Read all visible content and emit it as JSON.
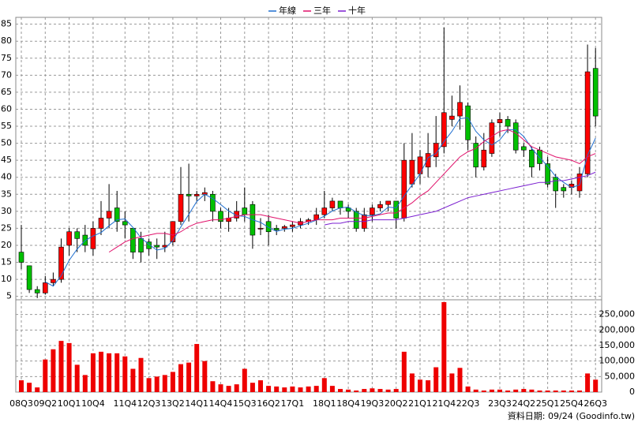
{
  "chart_data": {
    "type": "candlestick",
    "categories": [
      "08Q3",
      null,
      null,
      "09Q2",
      null,
      null,
      "10Q1",
      null,
      null,
      "10Q4",
      null,
      null,
      null,
      "11Q4",
      null,
      null,
      "12Q3",
      null,
      null,
      "13Q2",
      null,
      null,
      "14Q1",
      null,
      null,
      "14Q4",
      null,
      null,
      "15Q3",
      null,
      null,
      "16Q2",
      null,
      null,
      "17Q1",
      null,
      null,
      null,
      "18Q1",
      null,
      null,
      "18Q4",
      null,
      null,
      "19Q3",
      null,
      null,
      "20Q2",
      null,
      null,
      "21Q1",
      null,
      null,
      "21Q4",
      null,
      null,
      "22Q3",
      null,
      null,
      null,
      "23Q3",
      null,
      null,
      "24Q2",
      null,
      null,
      "25Q1",
      null,
      null,
      "25Q4",
      null,
      null,
      "26Q3"
    ],
    "open": [
      18,
      14,
      7,
      6,
      9,
      10,
      20,
      24,
      23,
      19,
      25,
      28,
      31,
      27,
      25,
      22,
      21,
      20,
      19.5,
      21,
      27,
      35,
      34.5,
      35,
      35,
      30,
      27,
      28,
      31,
      32,
      25,
      27,
      25,
      25,
      25.5,
      26,
      27,
      27.5,
      29,
      31,
      33,
      31,
      30,
      25,
      29,
      31,
      32,
      33,
      28,
      38,
      41,
      43,
      46,
      49,
      57,
      58,
      61,
      50,
      43,
      47,
      56,
      57,
      56,
      49,
      48,
      48,
      44,
      40,
      37,
      37,
      36,
      41,
      72
    ],
    "high": [
      26,
      14,
      8,
      11,
      12,
      22,
      25,
      25,
      26,
      27,
      33,
      38,
      36,
      30,
      25,
      24,
      22,
      22,
      24,
      27,
      43,
      44,
      36,
      37,
      36,
      31,
      31,
      33,
      37,
      33,
      28,
      29,
      26,
      26,
      27,
      28,
      28,
      31,
      36,
      34,
      33,
      32,
      31,
      31,
      32,
      33,
      33,
      33,
      50,
      53,
      48,
      53,
      58,
      84,
      64,
      67,
      62,
      52,
      53,
      57,
      59,
      58,
      57,
      50,
      49,
      49,
      46,
      41,
      38,
      39,
      43,
      79,
      78
    ],
    "low": [
      13,
      6,
      4.5,
      5.5,
      8,
      9,
      17,
      18,
      18,
      17,
      23,
      25,
      24,
      22,
      16,
      15,
      17,
      16,
      18,
      20,
      26,
      27,
      33,
      33,
      27,
      25,
      24,
      27,
      27,
      19,
      23,
      20,
      23,
      24,
      24,
      25,
      26,
      26,
      28,
      30,
      29,
      28,
      24,
      24,
      27,
      30,
      30,
      25,
      27,
      37,
      38,
      40,
      43,
      47,
      55,
      54,
      48,
      40,
      42,
      46,
      52,
      53,
      47,
      46,
      40,
      42,
      37,
      31,
      34,
      35,
      34,
      40,
      55
    ],
    "close": [
      15,
      7,
      6,
      9,
      10,
      19.5,
      24,
      22,
      20,
      25,
      28,
      30,
      27,
      26,
      18,
      18,
      19,
      19.5,
      20,
      27,
      35,
      34.5,
      35,
      35.5,
      30,
      27,
      28,
      30,
      29,
      23,
      25,
      24,
      24.5,
      25.5,
      26,
      27,
      27.5,
      29,
      31,
      33,
      31,
      30,
      25,
      29,
      31,
      32,
      33,
      28,
      45,
      45,
      46,
      47,
      50,
      59,
      58,
      62,
      51,
      43,
      48,
      56,
      57,
      55,
      48,
      48,
      43,
      44,
      38,
      36,
      36,
      38,
      41,
      71,
      58
    ],
    "up_color": "#ff0000",
    "down_color": "#00c000",
    "volume": {
      "axis": "y2",
      "color": "#ee0000",
      "values": [
        38000,
        30000,
        15000,
        105000,
        138000,
        165000,
        158000,
        88000,
        55000,
        125000,
        130000,
        125000,
        125000,
        115000,
        75000,
        110000,
        45000,
        50000,
        55000,
        65000,
        90000,
        95000,
        155000,
        100000,
        35000,
        25000,
        20000,
        25000,
        75000,
        30000,
        38000,
        20000,
        18000,
        15000,
        18000,
        15000,
        18000,
        20000,
        45000,
        20000,
        10000,
        8000,
        5000,
        10000,
        12000,
        10000,
        8000,
        10000,
        130000,
        60000,
        40000,
        38000,
        80000,
        290000,
        60000,
        78000,
        18000,
        8000,
        5000,
        8000,
        8000,
        5000,
        8000,
        10000,
        8000,
        5000,
        5000,
        5000,
        5000,
        5000,
        5000,
        60000,
        40000
      ]
    },
    "series": [
      {
        "name": "年線",
        "color": "#1f6fd0",
        "values": [
          null,
          null,
          null,
          9.25,
          8,
          11.1,
          15.6,
          18.9,
          21.4,
          22.75,
          23.75,
          25.75,
          27.5,
          27.75,
          25.25,
          22.25,
          20.25,
          18.6,
          19.1,
          21.4,
          25.4,
          29.1,
          32.9,
          35,
          33.75,
          32,
          30.1,
          28.75,
          28.5,
          27.5,
          26.75,
          25.25,
          24.1,
          24.75,
          25,
          25.75,
          26.5,
          27.4,
          28.6,
          30.1,
          31,
          31.25,
          29.75,
          28.75,
          28.75,
          29.25,
          31.25,
          31,
          34.5,
          37.75,
          41,
          45.75,
          47,
          50.5,
          53.5,
          57.25,
          57.5,
          53.5,
          51,
          49.5,
          51,
          54,
          54,
          52,
          48.5,
          45.75,
          43.25,
          40.25,
          38.5,
          37,
          37.75,
          46.5,
          51.5
        ]
      },
      {
        "name": "三年",
        "color": "#e0106a",
        "values": [
          null,
          null,
          null,
          null,
          null,
          null,
          null,
          null,
          null,
          null,
          null,
          18,
          19.5,
          21,
          22,
          22.5,
          23,
          23.5,
          23.5,
          23,
          24,
          25.5,
          26.5,
          27,
          27.5,
          27.5,
          28,
          28.5,
          29,
          29,
          29,
          28.5,
          28,
          27.5,
          27,
          26.5,
          27,
          27.5,
          27.5,
          27.5,
          28,
          28,
          28,
          28,
          28.5,
          29,
          29.5,
          29.5,
          31,
          32.5,
          34.5,
          36,
          38.5,
          41,
          43.5,
          46,
          47.5,
          48.5,
          50.5,
          52,
          53.5,
          54,
          53,
          51,
          49,
          48,
          47,
          46,
          45.5,
          45,
          44,
          46,
          47
        ]
      },
      {
        "name": "十年",
        "color": "#7b1fd0",
        "values": [
          null,
          null,
          null,
          null,
          null,
          null,
          null,
          null,
          null,
          null,
          null,
          null,
          null,
          null,
          null,
          null,
          null,
          null,
          null,
          null,
          null,
          null,
          null,
          null,
          null,
          null,
          null,
          null,
          null,
          null,
          null,
          null,
          null,
          null,
          null,
          null,
          null,
          null,
          26,
          26.5,
          26.5,
          27,
          27,
          27,
          27.5,
          27.5,
          27.5,
          27.5,
          28,
          28.5,
          29,
          29.5,
          30,
          31,
          32,
          33,
          34,
          34.5,
          35,
          35.5,
          36,
          36.5,
          37,
          37.5,
          38,
          38.5,
          38.5,
          39,
          39,
          39.5,
          40,
          40.5,
          41.5
        ]
      }
    ],
    "ylim": [
      4,
      87
    ],
    "yticks": [
      5,
      10,
      15,
      20,
      25,
      30,
      35,
      40,
      45,
      50,
      55,
      60,
      65,
      70,
      75,
      80,
      85
    ],
    "y2lim": [
      0,
      297500
    ],
    "y2ticks": [
      0,
      {
        "value": 50000,
        "label": "50,000"
      },
      {
        "value": 100000,
        "label": "100,000"
      },
      {
        "value": 150000,
        "label": "150,000"
      },
      {
        "value": 200000,
        "label": "200,000"
      },
      {
        "value": 250000,
        "label": "250,000"
      }
    ],
    "grid": true,
    "legend": "top",
    "footnote": "資料日期: 09/24 (Goodinfo.tw)"
  }
}
